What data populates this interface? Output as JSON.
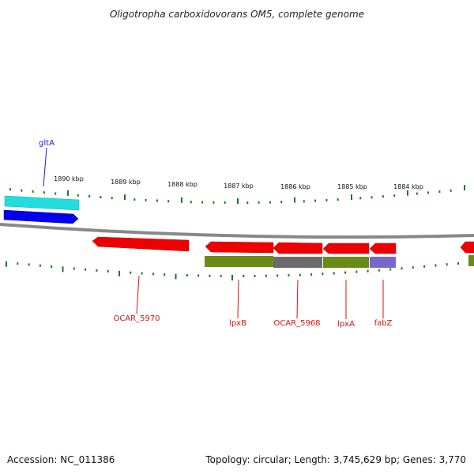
{
  "title": "Oligotropha carboxidovorans OM5, complete genome",
  "footer": {
    "accession": "Accession: NC_011386",
    "topology": "Topology: circular; Length: 3,745,629 bp; Genes: 3,770"
  },
  "colors": {
    "backbone": "#888888",
    "tick": "#1c7a1c",
    "label_blue": "#1a1acc",
    "label_red": "#dd1111",
    "cds_red": "#ee0000",
    "cds_blue": "#0000ee",
    "cds_cyan": "#22dddd",
    "cog_olive": "#6b8a1a",
    "cog_gray": "#6b6b6b",
    "cog_purple": "#7766cc"
  },
  "ticks": {
    "labels": [
      "1890 kbp",
      "1889 kbp",
      "1888 kbp",
      "1887 kbp",
      "1886 kbp",
      "1885 kbp",
      "1884 kbp"
    ]
  },
  "genes": [
    {
      "label": "gltA",
      "strand": "+",
      "color": "blue"
    },
    {
      "label": "OCAR_5970",
      "strand": "-",
      "color": "red"
    },
    {
      "label": "lpxB",
      "strand": "-",
      "color": "red"
    },
    {
      "label": "OCAR_5968",
      "strand": "-",
      "color": "red"
    },
    {
      "label": "lpxA",
      "strand": "-",
      "color": "red"
    },
    {
      "label": "fabZ",
      "strand": "-",
      "color": "red"
    }
  ]
}
